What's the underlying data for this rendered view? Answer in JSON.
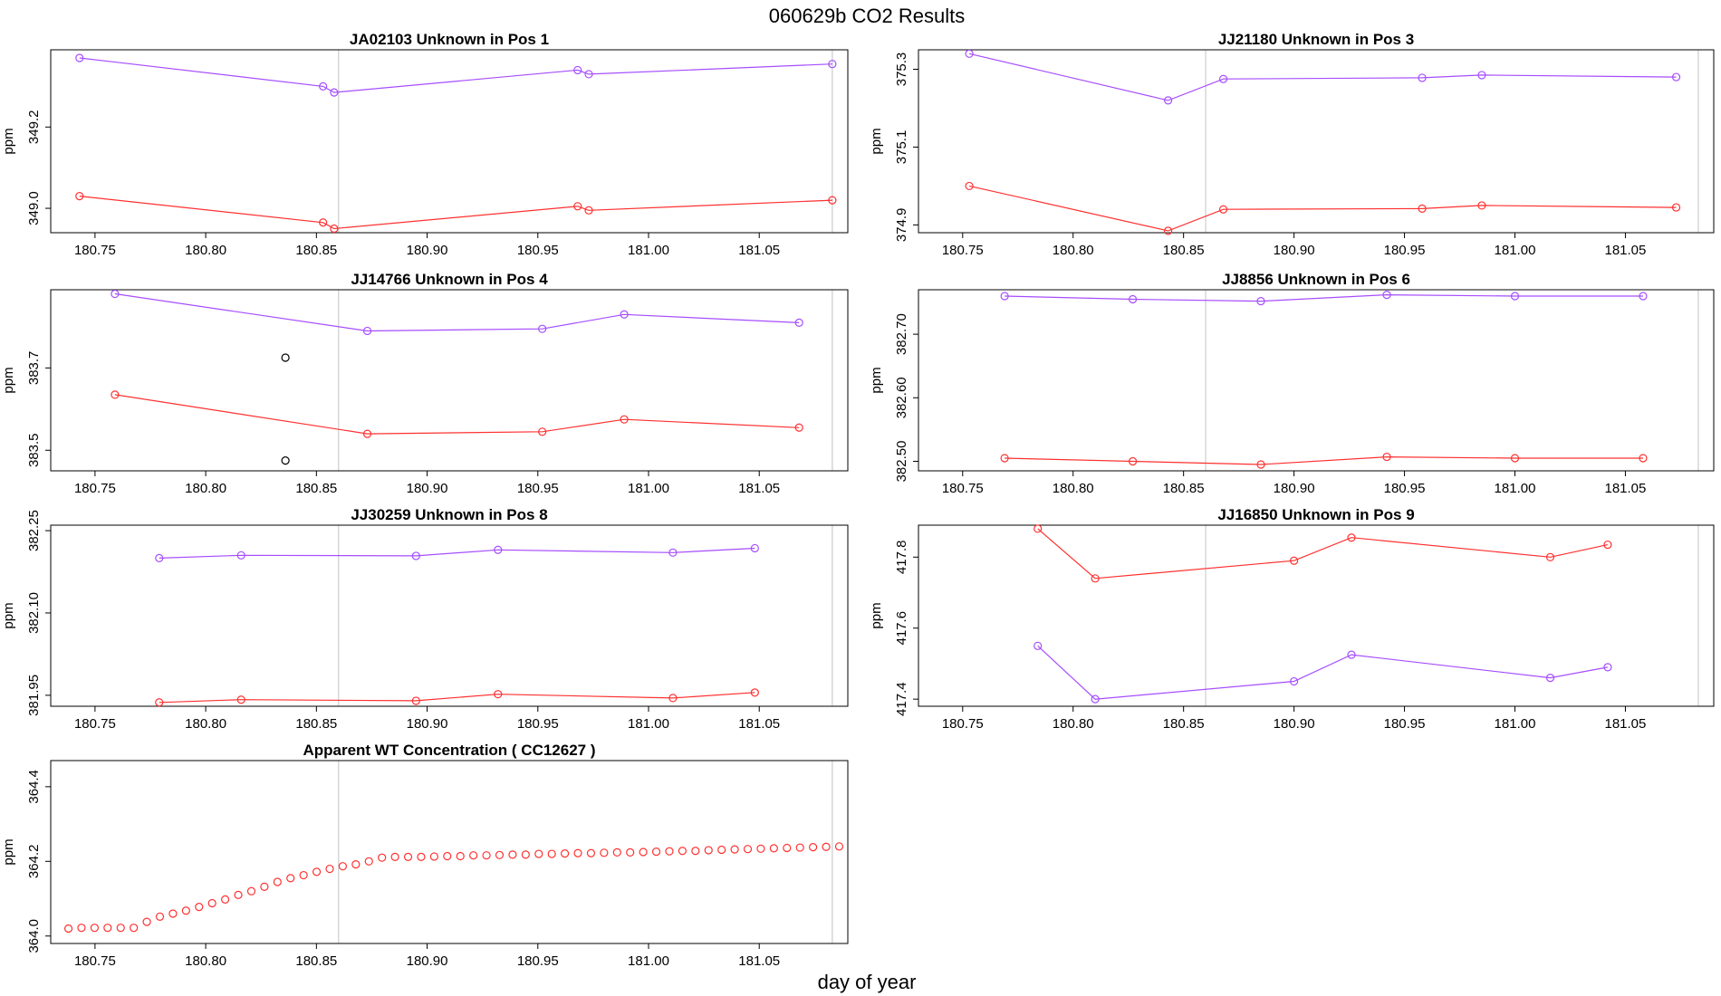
{
  "figure": {
    "title": "060629b  CO2 Results",
    "xlabel": "day of year",
    "colors": {
      "series_a": "#a64dff",
      "series_b": "#ff3030",
      "marker_line": "#cccccc",
      "frame": "#000000",
      "black_points": "#000000"
    }
  },
  "chart_data": [
    {
      "type": "line",
      "title": "JA02103    Unknown in Pos 1",
      "ylabel": "ppm",
      "xlim": [
        180.73,
        181.09
      ],
      "ylim": [
        348.94,
        349.39
      ],
      "xticks": [
        "180.75",
        "180.80",
        "180.85",
        "180.90",
        "180.95",
        "181.00",
        "181.05"
      ],
      "yticks": [
        "349.0",
        "349.2"
      ],
      "vlines": [
        180.86,
        181.083
      ],
      "series": [
        {
          "color": "#a64dff",
          "x": [
            180.743,
            180.853,
            180.858,
            180.968,
            180.973,
            181.083
          ],
          "y": [
            349.37,
            349.3,
            349.285,
            349.34,
            349.33,
            349.355
          ]
        },
        {
          "color": "#ff3030",
          "x": [
            180.743,
            180.853,
            180.858,
            180.968,
            180.973,
            181.083
          ],
          "y": [
            349.03,
            348.965,
            348.95,
            349.005,
            348.995,
            349.02
          ]
        }
      ]
    },
    {
      "type": "line",
      "title": "JJ21180    Unknown in Pos 3",
      "ylabel": "ppm",
      "xlim": [
        180.73,
        181.09
      ],
      "ylim": [
        374.88,
        375.35
      ],
      "xticks": [
        "180.75",
        "180.80",
        "180.85",
        "180.90",
        "180.95",
        "181.00",
        "181.05"
      ],
      "yticks": [
        "374.9",
        "375.1",
        "375.3"
      ],
      "vlines": [
        180.86,
        181.083
      ],
      "series": [
        {
          "color": "#a64dff",
          "x": [
            180.753,
            180.843,
            180.868,
            180.958,
            180.985,
            181.073
          ],
          "y": [
            375.34,
            375.22,
            375.275,
            375.278,
            375.285,
            375.28
          ]
        },
        {
          "color": "#ff3030",
          "x": [
            180.753,
            180.843,
            180.868,
            180.958,
            180.985,
            181.073
          ],
          "y": [
            375.0,
            374.885,
            374.94,
            374.942,
            374.95,
            374.945
          ]
        }
      ]
    },
    {
      "type": "line",
      "title": "JJ14766    Unknown in Pos 4",
      "ylabel": "ppm",
      "xlim": [
        180.73,
        181.09
      ],
      "ylim": [
        383.45,
        383.89
      ],
      "xticks": [
        "180.75",
        "180.80",
        "180.85",
        "180.90",
        "180.95",
        "181.00",
        "181.05"
      ],
      "yticks": [
        "383.5",
        "383.7"
      ],
      "vlines": [
        180.86,
        181.083
      ],
      "series": [
        {
          "color": "#a64dff",
          "x": [
            180.759,
            180.873,
            180.952,
            180.989,
            181.068
          ],
          "y": [
            383.88,
            383.79,
            383.795,
            383.83,
            383.81
          ]
        },
        {
          "color": "#ff3030",
          "x": [
            180.759,
            180.873,
            180.952,
            180.989,
            181.068
          ],
          "y": [
            383.635,
            383.54,
            383.545,
            383.575,
            383.555
          ]
        }
      ],
      "extra_points": {
        "color": "#000000",
        "x": [
          180.836,
          180.836
        ],
        "y": [
          383.725,
          383.475
        ]
      }
    },
    {
      "type": "line",
      "title": "JJ8856    Unknown in Pos 6",
      "ylabel": "ppm",
      "xlim": [
        180.73,
        181.09
      ],
      "ylim": [
        382.485,
        382.77
      ],
      "xticks": [
        "180.75",
        "180.80",
        "180.85",
        "180.90",
        "180.95",
        "181.00",
        "181.05"
      ],
      "yticks": [
        "382.50",
        "382.60",
        "382.70"
      ],
      "vlines": [
        180.86,
        181.083
      ],
      "series": [
        {
          "color": "#a64dff",
          "x": [
            180.769,
            180.827,
            180.885,
            180.942,
            181.0,
            181.058
          ],
          "y": [
            382.76,
            382.755,
            382.752,
            382.762,
            382.76,
            382.76
          ]
        },
        {
          "color": "#ff3030",
          "x": [
            180.769,
            180.827,
            180.885,
            180.942,
            181.0,
            181.058
          ],
          "y": [
            382.505,
            382.5,
            382.495,
            382.507,
            382.505,
            382.505
          ]
        }
      ]
    },
    {
      "type": "line",
      "title": "JJ30259    Unknown in Pos 8",
      "ylabel": "ppm",
      "xlim": [
        180.73,
        181.09
      ],
      "ylim": [
        381.93,
        382.26
      ],
      "xticks": [
        "180.75",
        "180.80",
        "180.85",
        "180.90",
        "180.95",
        "181.00",
        "181.05"
      ],
      "yticks": [
        "381.95",
        "382.10",
        "382.25"
      ],
      "vlines": [
        180.86,
        181.083
      ],
      "series": [
        {
          "color": "#a64dff",
          "x": [
            180.779,
            180.816,
            180.895,
            180.932,
            181.011,
            181.048
          ],
          "y": [
            382.2,
            382.205,
            382.204,
            382.215,
            382.21,
            382.218
          ]
        },
        {
          "color": "#ff3030",
          "x": [
            180.779,
            180.816,
            180.895,
            180.932,
            181.011,
            181.048
          ],
          "y": [
            381.937,
            381.942,
            381.94,
            381.952,
            381.945,
            381.955
          ]
        }
      ]
    },
    {
      "type": "line",
      "title": "JJ16850    Unknown in Pos 9",
      "ylabel": "ppm",
      "xlim": [
        180.73,
        181.09
      ],
      "ylim": [
        417.38,
        417.89
      ],
      "xticks": [
        "180.75",
        "180.80",
        "180.85",
        "180.90",
        "180.95",
        "181.00",
        "181.05"
      ],
      "yticks": [
        "417.4",
        "417.6",
        "417.8"
      ],
      "vlines": [
        180.86,
        181.083
      ],
      "series": [
        {
          "color": "#ff3030",
          "x": [
            180.784,
            180.81,
            180.9,
            180.926,
            181.016,
            181.042
          ],
          "y": [
            417.88,
            417.74,
            417.79,
            417.855,
            417.8,
            417.835
          ]
        },
        {
          "color": "#a64dff",
          "x": [
            180.784,
            180.81,
            180.9,
            180.926,
            181.016,
            181.042
          ],
          "y": [
            417.55,
            417.4,
            417.45,
            417.525,
            417.46,
            417.49
          ]
        }
      ]
    },
    {
      "type": "scatter",
      "title": "Apparent WT Concentration ( CC12627 )",
      "ylabel": "ppm",
      "xlim": [
        180.73,
        181.09
      ],
      "ylim": [
        363.98,
        364.47
      ],
      "xticks": [
        "180.75",
        "180.80",
        "180.85",
        "180.90",
        "180.95",
        "181.00",
        "181.05"
      ],
      "yticks": [
        "364.0",
        "364.2",
        "364.4"
      ],
      "vlines": [
        180.86,
        181.083
      ],
      "series": [
        {
          "color": "#ff3030",
          "start": 180.738,
          "step": 0.0059,
          "y": [
            364.02,
            364.022,
            364.022,
            364.022,
            364.022,
            364.022,
            364.038,
            364.052,
            364.06,
            364.068,
            364.078,
            364.088,
            364.098,
            364.11,
            364.12,
            364.132,
            364.145,
            364.155,
            364.163,
            364.172,
            364.18,
            364.187,
            364.192,
            364.2,
            364.21,
            364.212,
            364.212,
            364.212,
            364.213,
            364.214,
            364.214,
            364.216,
            364.216,
            364.217,
            364.218,
            364.218,
            364.22,
            364.22,
            364.221,
            364.222,
            364.222,
            364.223,
            364.224,
            364.224,
            364.225,
            364.226,
            364.227,
            364.228,
            364.228,
            364.23,
            364.231,
            364.232,
            364.233,
            364.234,
            364.235,
            364.236,
            364.237,
            364.238,
            364.239,
            364.24
          ]
        }
      ]
    }
  ]
}
